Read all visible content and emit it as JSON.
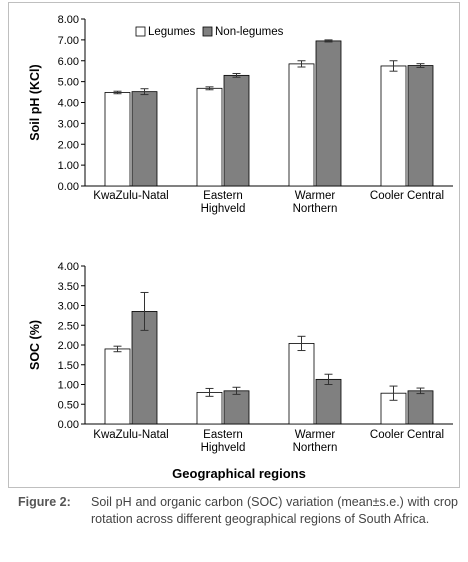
{
  "chart_data": [
    {
      "type": "bar",
      "categories": [
        [
          "KwaZulu-Natal"
        ],
        [
          "Eastern",
          "Highveld"
        ],
        [
          "Warmer",
          "Northern"
        ],
        [
          "Cooler Central"
        ]
      ],
      "series": [
        {
          "name": "Legumes",
          "values": [
            4.48,
            4.68,
            5.85,
            5.75
          ],
          "errors": [
            0.06,
            0.07,
            0.15,
            0.25
          ],
          "color": "#ffffff"
        },
        {
          "name": "Non-legumes",
          "values": [
            4.52,
            5.3,
            6.95,
            5.77
          ],
          "errors": [
            0.14,
            0.09,
            0.05,
            0.09
          ],
          "color": "#808080"
        }
      ],
      "ylabel": "Soil pH (KCl)",
      "xlabel": "",
      "ylim": [
        0,
        8
      ],
      "yticks": [
        "0.00",
        "1.00",
        "2.00",
        "3.00",
        "4.00",
        "5.00",
        "6.00",
        "7.00",
        "8.00"
      ],
      "legend": "top",
      "grid": false
    },
    {
      "type": "bar",
      "categories": [
        [
          "KwaZulu-Natal"
        ],
        [
          "Eastern",
          "Highveld"
        ],
        [
          "Warmer",
          "Northern"
        ],
        [
          "Cooler Central"
        ]
      ],
      "series": [
        {
          "name": "Legumes",
          "values": [
            1.9,
            0.8,
            2.04,
            0.78
          ],
          "errors": [
            0.07,
            0.1,
            0.18,
            0.18
          ],
          "color": "#ffffff"
        },
        {
          "name": "Non-legumes",
          "values": [
            2.85,
            0.84,
            1.13,
            0.84
          ],
          "errors": [
            0.48,
            0.09,
            0.13,
            0.07
          ],
          "color": "#808080"
        }
      ],
      "ylabel": "SOC (%)",
      "xlabel": "Geographical regions",
      "ylim": [
        0,
        4
      ],
      "yticks": [
        "0.00",
        "0.50",
        "1.00",
        "1.50",
        "2.00",
        "2.50",
        "3.00",
        "3.50",
        "4.00"
      ],
      "legend": "none",
      "grid": false
    }
  ],
  "caption": {
    "label": "Figure 2:",
    "text": "Soil pH and organic carbon (SOC) variation (mean±s.e.) with crop rotation across different geographical regions of South Africa."
  }
}
